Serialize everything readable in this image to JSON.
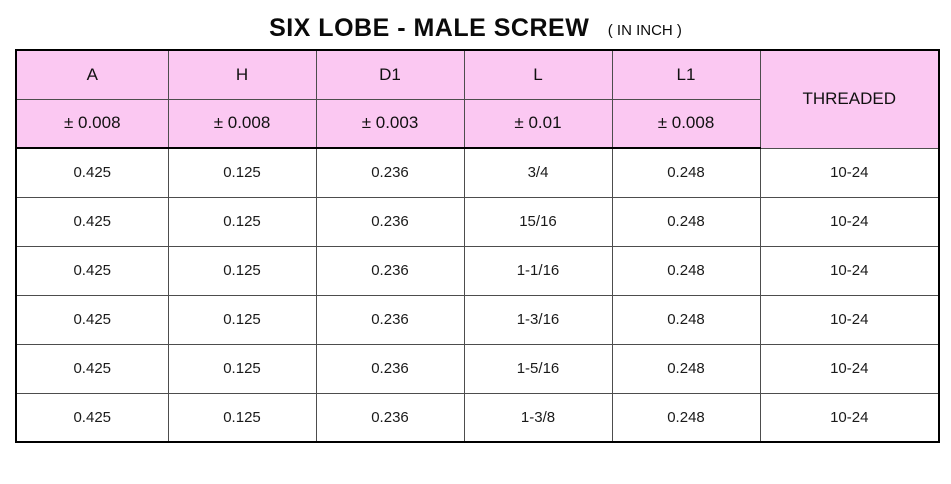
{
  "title": {
    "main": "SIX LOBE - MALE SCREW",
    "unit": "( IN INCH )"
  },
  "table": {
    "header_bg": "#fbc8f2",
    "border_color": "#000000",
    "grid_color": "#4d4d4d",
    "columns": [
      {
        "label": "A",
        "tolerance": "± 0.008"
      },
      {
        "label": "H",
        "tolerance": "± 0.008"
      },
      {
        "label": "D1",
        "tolerance": "± 0.003"
      },
      {
        "label": "L",
        "tolerance": "± 0.01"
      },
      {
        "label": "L1",
        "tolerance": "± 0.008"
      }
    ],
    "threaded_label": "THREADED",
    "rows": [
      [
        "0.425",
        "0.125",
        "0.236",
        "3/4",
        "0.248",
        "10-24"
      ],
      [
        "0.425",
        "0.125",
        "0.236",
        "15/16",
        "0.248",
        "10-24"
      ],
      [
        "0.425",
        "0.125",
        "0.236",
        "1-1/16",
        "0.248",
        "10-24"
      ],
      [
        "0.425",
        "0.125",
        "0.236",
        "1-3/16",
        "0.248",
        "10-24"
      ],
      [
        "0.425",
        "0.125",
        "0.236",
        "1-5/16",
        "0.248",
        "10-24"
      ],
      [
        "0.425",
        "0.125",
        "0.236",
        "1-3/8",
        "0.248",
        "10-24"
      ]
    ]
  }
}
